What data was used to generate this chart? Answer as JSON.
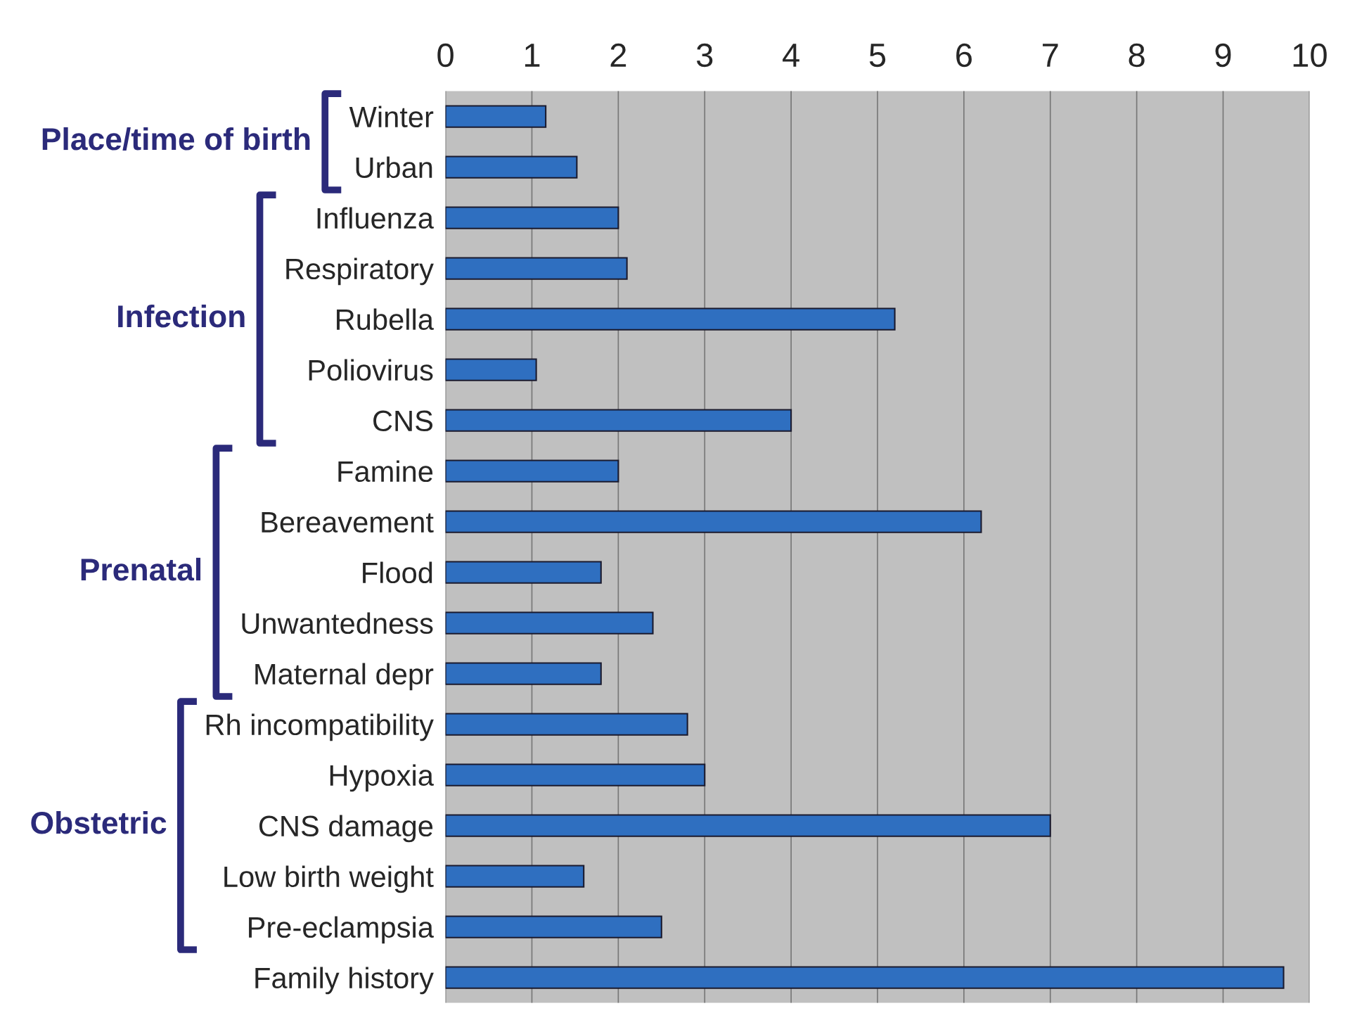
{
  "chart_data": {
    "type": "bar",
    "orientation": "horizontal",
    "categories": [
      "Winter",
      "Urban",
      "Influenza",
      "Respiratory",
      "Rubella",
      "Poliovirus",
      "CNS",
      "Famine",
      "Bereavement",
      "Flood",
      "Unwantedness",
      "Maternal depr",
      "Rh incompatibility",
      "Hypoxia",
      "CNS damage",
      "Low birth weight",
      "Pre-eclampsia",
      "Family history"
    ],
    "values": [
      1.16,
      1.52,
      2.0,
      2.1,
      5.2,
      1.05,
      4.0,
      2.0,
      6.2,
      1.8,
      2.4,
      1.8,
      2.8,
      3.0,
      7.0,
      1.6,
      2.5,
      9.7
    ],
    "color": "#2f6fc0",
    "xlim": [
      0,
      10
    ],
    "xticks": [
      0,
      1,
      2,
      3,
      4,
      5,
      6,
      7,
      8,
      9,
      10
    ],
    "grid": "x",
    "annotations": [
      "Place/time of birth",
      "Infection",
      "Prenatal",
      "Obstetric"
    ]
  }
}
